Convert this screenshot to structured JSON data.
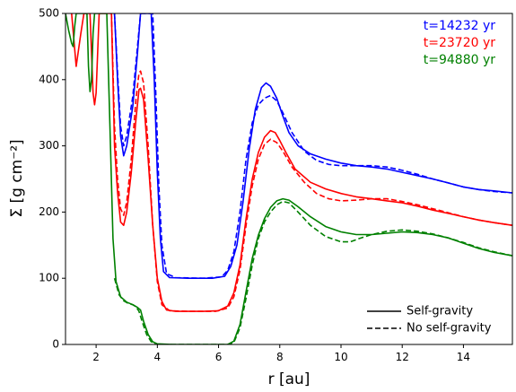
{
  "chart_data": {
    "type": "line",
    "title": "",
    "xlabel": "r [au]",
    "ylabel": "Σ [g cm⁻²]",
    "xlim": [
      1.0,
      15.6
    ],
    "ylim": [
      0,
      500
    ],
    "x_ticks": [
      2,
      4,
      6,
      8,
      10,
      12,
      14
    ],
    "y_ticks": [
      0,
      100,
      200,
      300,
      400,
      500
    ],
    "grid": false,
    "legend_position": "bottom-right",
    "legend": [
      {
        "label": "Self-gravity",
        "style": "solid"
      },
      {
        "label": "No self-gravity",
        "style": "dashed"
      }
    ],
    "annotations": [
      {
        "text": "t=14232 yr",
        "color": "#0000ff"
      },
      {
        "text": "t=23720 yr",
        "color": "#ff0000"
      },
      {
        "text": "t=94880 yr",
        "color": "#008000"
      }
    ],
    "series": [
      {
        "color": "#0000ff",
        "dash": false,
        "points": [
          [
            2.6,
            500
          ],
          [
            2.7,
            400
          ],
          [
            2.8,
            315
          ],
          [
            2.9,
            285
          ],
          [
            3.0,
            300
          ],
          [
            3.2,
            360
          ],
          [
            3.35,
            440
          ],
          [
            3.45,
            500
          ],
          [
            3.8,
            500
          ],
          [
            3.9,
            400
          ],
          [
            4.0,
            260
          ],
          [
            4.1,
            160
          ],
          [
            4.2,
            110
          ],
          [
            4.4,
            101
          ],
          [
            5.0,
            100
          ],
          [
            5.8,
            100
          ],
          [
            6.2,
            103
          ],
          [
            6.4,
            118
          ],
          [
            6.6,
            150
          ],
          [
            6.8,
            215
          ],
          [
            7.0,
            295
          ],
          [
            7.2,
            355
          ],
          [
            7.4,
            388
          ],
          [
            7.55,
            395
          ],
          [
            7.7,
            390
          ],
          [
            7.9,
            372
          ],
          [
            8.1,
            345
          ],
          [
            8.3,
            320
          ],
          [
            8.6,
            300
          ],
          [
            9.0,
            288
          ],
          [
            9.5,
            280
          ],
          [
            10.0,
            274
          ],
          [
            10.5,
            270
          ],
          [
            11.0,
            268
          ],
          [
            11.5,
            265
          ],
          [
            12.0,
            260
          ],
          [
            12.5,
            255
          ],
          [
            13.0,
            250
          ],
          [
            13.5,
            244
          ],
          [
            14.0,
            238
          ],
          [
            14.5,
            234
          ],
          [
            15.0,
            232
          ],
          [
            15.6,
            229
          ]
        ]
      },
      {
        "color": "#0000ff",
        "dash": true,
        "points": [
          [
            2.6,
            500
          ],
          [
            2.7,
            410
          ],
          [
            2.8,
            330
          ],
          [
            2.9,
            300
          ],
          [
            3.0,
            315
          ],
          [
            3.2,
            375
          ],
          [
            3.35,
            450
          ],
          [
            3.45,
            500
          ],
          [
            3.85,
            500
          ],
          [
            3.95,
            380
          ],
          [
            4.05,
            240
          ],
          [
            4.15,
            150
          ],
          [
            4.3,
            107
          ],
          [
            4.6,
            101
          ],
          [
            5.5,
            100
          ],
          [
            6.1,
            102
          ],
          [
            6.3,
            112
          ],
          [
            6.5,
            140
          ],
          [
            6.7,
            200
          ],
          [
            6.9,
            280
          ],
          [
            7.1,
            335
          ],
          [
            7.3,
            362
          ],
          [
            7.5,
            372
          ],
          [
            7.7,
            376
          ],
          [
            7.9,
            368
          ],
          [
            8.1,
            350
          ],
          [
            8.4,
            320
          ],
          [
            8.8,
            292
          ],
          [
            9.2,
            278
          ],
          [
            9.6,
            272
          ],
          [
            10.0,
            270
          ],
          [
            10.5,
            270
          ],
          [
            11.0,
            270
          ],
          [
            11.5,
            268
          ],
          [
            12.0,
            263
          ],
          [
            12.5,
            257
          ],
          [
            13.0,
            250
          ],
          [
            13.5,
            244
          ],
          [
            14.0,
            238
          ],
          [
            14.5,
            234
          ],
          [
            15.0,
            231
          ],
          [
            15.6,
            229
          ]
        ]
      },
      {
        "color": "#ff0000",
        "dash": false,
        "points": [
          [
            1.2,
            500
          ],
          [
            1.35,
            420
          ],
          [
            1.5,
            470
          ],
          [
            1.6,
            500
          ],
          [
            1.8,
            500
          ],
          [
            1.9,
            380
          ],
          [
            1.95,
            362
          ],
          [
            2.0,
            380
          ],
          [
            2.1,
            500
          ],
          [
            2.5,
            500
          ],
          [
            2.6,
            300
          ],
          [
            2.7,
            230
          ],
          [
            2.8,
            185
          ],
          [
            2.9,
            180
          ],
          [
            3.0,
            200
          ],
          [
            3.15,
            260
          ],
          [
            3.3,
            340
          ],
          [
            3.4,
            385
          ],
          [
            3.45,
            387
          ],
          [
            3.55,
            370
          ],
          [
            3.7,
            280
          ],
          [
            3.85,
            180
          ],
          [
            4.0,
            100
          ],
          [
            4.15,
            65
          ],
          [
            4.3,
            52
          ],
          [
            4.6,
            50
          ],
          [
            5.5,
            50
          ],
          [
            6.0,
            51
          ],
          [
            6.3,
            58
          ],
          [
            6.5,
            78
          ],
          [
            6.7,
            120
          ],
          [
            6.9,
            190
          ],
          [
            7.1,
            250
          ],
          [
            7.3,
            290
          ],
          [
            7.5,
            313
          ],
          [
            7.7,
            323
          ],
          [
            7.85,
            320
          ],
          [
            8.0,
            308
          ],
          [
            8.2,
            290
          ],
          [
            8.5,
            265
          ],
          [
            9.0,
            245
          ],
          [
            9.5,
            235
          ],
          [
            10.0,
            228
          ],
          [
            10.5,
            223
          ],
          [
            11.0,
            220
          ],
          [
            11.5,
            217
          ],
          [
            12.0,
            214
          ],
          [
            12.5,
            209
          ],
          [
            13.0,
            203
          ],
          [
            13.5,
            198
          ],
          [
            14.0,
            193
          ],
          [
            14.5,
            188
          ],
          [
            15.0,
            184
          ],
          [
            15.6,
            180
          ]
        ]
      },
      {
        "color": "#ff0000",
        "dash": true,
        "points": [
          [
            2.5,
            500
          ],
          [
            2.6,
            330
          ],
          [
            2.7,
            250
          ],
          [
            2.8,
            205
          ],
          [
            2.9,
            195
          ],
          [
            3.0,
            215
          ],
          [
            3.15,
            280
          ],
          [
            3.3,
            370
          ],
          [
            3.4,
            410
          ],
          [
            3.45,
            413
          ],
          [
            3.55,
            395
          ],
          [
            3.7,
            300
          ],
          [
            3.85,
            180
          ],
          [
            4.0,
            95
          ],
          [
            4.15,
            60
          ],
          [
            4.4,
            51
          ],
          [
            5.0,
            50
          ],
          [
            5.9,
            50
          ],
          [
            6.3,
            55
          ],
          [
            6.5,
            72
          ],
          [
            6.7,
            112
          ],
          [
            6.9,
            180
          ],
          [
            7.1,
            240
          ],
          [
            7.3,
            280
          ],
          [
            7.5,
            302
          ],
          [
            7.7,
            310
          ],
          [
            7.9,
            305
          ],
          [
            8.1,
            292
          ],
          [
            8.4,
            268
          ],
          [
            8.8,
            245
          ],
          [
            9.2,
            228
          ],
          [
            9.6,
            220
          ],
          [
            10.0,
            217
          ],
          [
            10.5,
            218
          ],
          [
            11.0,
            220
          ],
          [
            11.5,
            220
          ],
          [
            12.0,
            216
          ],
          [
            12.5,
            211
          ],
          [
            13.0,
            205
          ],
          [
            13.5,
            199
          ],
          [
            14.0,
            193
          ],
          [
            14.5,
            188
          ],
          [
            15.0,
            184
          ],
          [
            15.6,
            180
          ]
        ]
      },
      {
        "color": "#008000",
        "dash": false,
        "points": [
          [
            1.0,
            500
          ],
          [
            1.1,
            475
          ],
          [
            1.2,
            455
          ],
          [
            1.25,
            450
          ],
          [
            1.3,
            480
          ],
          [
            1.35,
            500
          ],
          [
            1.7,
            500
          ],
          [
            1.75,
            420
          ],
          [
            1.8,
            382
          ],
          [
            1.85,
            400
          ],
          [
            1.9,
            470
          ],
          [
            1.95,
            500
          ],
          [
            2.35,
            500
          ],
          [
            2.45,
            330
          ],
          [
            2.55,
            160
          ],
          [
            2.65,
            95
          ],
          [
            2.8,
            72
          ],
          [
            3.0,
            64
          ],
          [
            3.2,
            60
          ],
          [
            3.35,
            56
          ],
          [
            3.45,
            52
          ],
          [
            3.55,
            35
          ],
          [
            3.7,
            15
          ],
          [
            3.85,
            4
          ],
          [
            4.0,
            1
          ],
          [
            4.5,
            0
          ],
          [
            5.5,
            0
          ],
          [
            6.3,
            0
          ],
          [
            6.5,
            5
          ],
          [
            6.7,
            30
          ],
          [
            6.9,
            80
          ],
          [
            7.1,
            130
          ],
          [
            7.3,
            165
          ],
          [
            7.5,
            190
          ],
          [
            7.7,
            207
          ],
          [
            7.9,
            217
          ],
          [
            8.1,
            220
          ],
          [
            8.3,
            218
          ],
          [
            8.6,
            208
          ],
          [
            9.0,
            193
          ],
          [
            9.5,
            178
          ],
          [
            10.0,
            170
          ],
          [
            10.5,
            166
          ],
          [
            11.0,
            166
          ],
          [
            11.5,
            168
          ],
          [
            12.0,
            170
          ],
          [
            12.5,
            169
          ],
          [
            13.0,
            166
          ],
          [
            13.5,
            161
          ],
          [
            14.0,
            153
          ],
          [
            14.5,
            145
          ],
          [
            15.0,
            139
          ],
          [
            15.6,
            134
          ]
        ]
      },
      {
        "color": "#008000",
        "dash": true,
        "points": [
          [
            2.6,
            100
          ],
          [
            2.75,
            75
          ],
          [
            2.9,
            66
          ],
          [
            3.05,
            62
          ],
          [
            3.2,
            60
          ],
          [
            3.3,
            57
          ],
          [
            3.4,
            50
          ],
          [
            3.5,
            35
          ],
          [
            3.65,
            15
          ],
          [
            3.8,
            4
          ],
          [
            4.0,
            0
          ],
          [
            5.0,
            0
          ],
          [
            6.3,
            0
          ],
          [
            6.5,
            3
          ],
          [
            6.7,
            25
          ],
          [
            6.9,
            70
          ],
          [
            7.1,
            120
          ],
          [
            7.3,
            160
          ],
          [
            7.5,
            185
          ],
          [
            7.7,
            200
          ],
          [
            7.9,
            211
          ],
          [
            8.1,
            216
          ],
          [
            8.3,
            214
          ],
          [
            8.6,
            200
          ],
          [
            9.0,
            180
          ],
          [
            9.5,
            163
          ],
          [
            10.0,
            155
          ],
          [
            10.3,
            155
          ],
          [
            10.6,
            160
          ],
          [
            11.0,
            166
          ],
          [
            11.5,
            171
          ],
          [
            12.0,
            173
          ],
          [
            12.5,
            171
          ],
          [
            13.0,
            167
          ],
          [
            13.5,
            161
          ],
          [
            14.0,
            154
          ],
          [
            14.5,
            146
          ],
          [
            15.0,
            140
          ],
          [
            15.6,
            134
          ]
        ]
      }
    ]
  }
}
